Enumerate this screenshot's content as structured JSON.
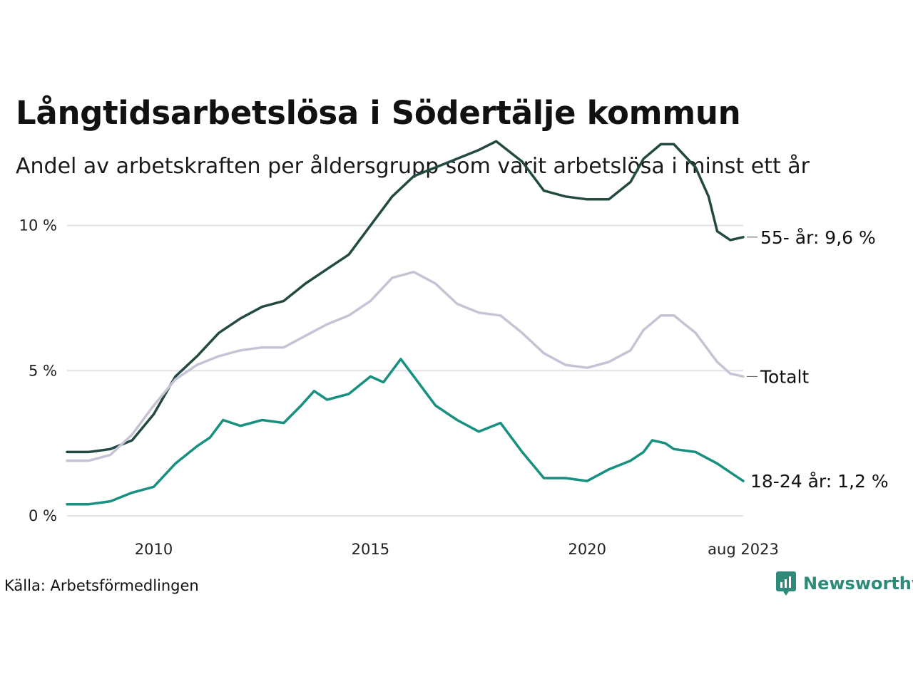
{
  "title": "Långtidsarbetslösa i Södertälje kommun",
  "subtitle": "Andel av arbetskraften per åldersgrupp som varit arbetslösa i minst ett år",
  "source": "Källa: Arbetsförmedlingen",
  "brand": "Newsworthy",
  "colors": {
    "series_55": "#234a42",
    "series_total": "#c6c3d4",
    "series_18_24": "#17907f",
    "grid": "#e2e2e6",
    "brand": "#2e8b7a"
  },
  "chart_data": {
    "type": "line",
    "xlim": [
      2008.0,
      2023.6
    ],
    "ylim": [
      0,
      12
    ],
    "y_ticks": [
      {
        "value": 0,
        "label": "0 %"
      },
      {
        "value": 5,
        "label": "5 %"
      },
      {
        "value": 10,
        "label": "10 %"
      }
    ],
    "x_ticks": [
      {
        "value": 2010,
        "label": "2010"
      },
      {
        "value": 2015,
        "label": "2015"
      },
      {
        "value": 2020,
        "label": "2020"
      },
      {
        "value": 2023.6,
        "label": "aug 2023"
      }
    ],
    "grid": true,
    "legend": "direct labels at line ends",
    "series": [
      {
        "key": "series_55",
        "end_label": "55- år: 9,6 %",
        "x": [
          2008.0,
          2008.5,
          2009.0,
          2009.5,
          2010.0,
          2010.5,
          2011.0,
          2011.5,
          2012.0,
          2012.5,
          2013.0,
          2013.5,
          2014.0,
          2014.5,
          2015.0,
          2015.5,
          2016.0,
          2016.5,
          2017.0,
          2017.5,
          2017.9,
          2018.5,
          2019.0,
          2019.5,
          2020.0,
          2020.5,
          2021.0,
          2021.3,
          2021.7,
          2022.0,
          2022.5,
          2022.8,
          2023.0,
          2023.3,
          2023.6
        ],
        "y": [
          2.2,
          2.2,
          2.3,
          2.6,
          3.5,
          4.8,
          5.5,
          6.3,
          6.8,
          7.2,
          7.4,
          8.0,
          8.5,
          9.0,
          10.0,
          11.0,
          11.7,
          12.0,
          12.3,
          12.6,
          12.9,
          12.2,
          11.2,
          11.0,
          10.9,
          10.9,
          11.5,
          12.3,
          12.8,
          12.8,
          12.0,
          11.0,
          9.8,
          9.5,
          9.6
        ]
      },
      {
        "key": "series_total",
        "end_label": "Totalt",
        "x": [
          2008.0,
          2008.5,
          2009.0,
          2009.5,
          2010.0,
          2010.5,
          2011.0,
          2011.5,
          2012.0,
          2012.5,
          2013.0,
          2013.5,
          2014.0,
          2014.5,
          2015.0,
          2015.5,
          2016.0,
          2016.5,
          2017.0,
          2017.5,
          2018.0,
          2018.5,
          2019.0,
          2019.5,
          2020.0,
          2020.5,
          2021.0,
          2021.3,
          2021.7,
          2022.0,
          2022.5,
          2023.0,
          2023.3,
          2023.6
        ],
        "y": [
          1.9,
          1.9,
          2.1,
          2.8,
          3.8,
          4.7,
          5.2,
          5.5,
          5.7,
          5.8,
          5.8,
          6.2,
          6.6,
          6.9,
          7.4,
          8.2,
          8.4,
          8.0,
          7.3,
          7.0,
          6.9,
          6.3,
          5.6,
          5.2,
          5.1,
          5.3,
          5.7,
          6.4,
          6.9,
          6.9,
          6.3,
          5.3,
          4.9,
          4.8
        ]
      },
      {
        "key": "series_18_24",
        "end_label": "18-24 år: 1,2 %",
        "x": [
          2008.0,
          2008.5,
          2009.0,
          2009.5,
          2010.0,
          2010.5,
          2011.0,
          2011.3,
          2011.6,
          2012.0,
          2012.5,
          2013.0,
          2013.4,
          2013.7,
          2014.0,
          2014.5,
          2015.0,
          2015.3,
          2015.7,
          2016.0,
          2016.5,
          2017.0,
          2017.5,
          2018.0,
          2018.5,
          2019.0,
          2019.5,
          2020.0,
          2020.5,
          2021.0,
          2021.3,
          2021.5,
          2021.8,
          2022.0,
          2022.5,
          2023.0,
          2023.3,
          2023.6
        ],
        "y": [
          0.4,
          0.4,
          0.5,
          0.8,
          1.0,
          1.8,
          2.4,
          2.7,
          3.3,
          3.1,
          3.3,
          3.2,
          3.8,
          4.3,
          4.0,
          4.2,
          4.8,
          4.6,
          5.4,
          4.8,
          3.8,
          3.3,
          2.9,
          3.2,
          2.2,
          1.3,
          1.3,
          1.2,
          1.6,
          1.9,
          2.2,
          2.6,
          2.5,
          2.3,
          2.2,
          1.8,
          1.5,
          1.2
        ]
      }
    ]
  }
}
